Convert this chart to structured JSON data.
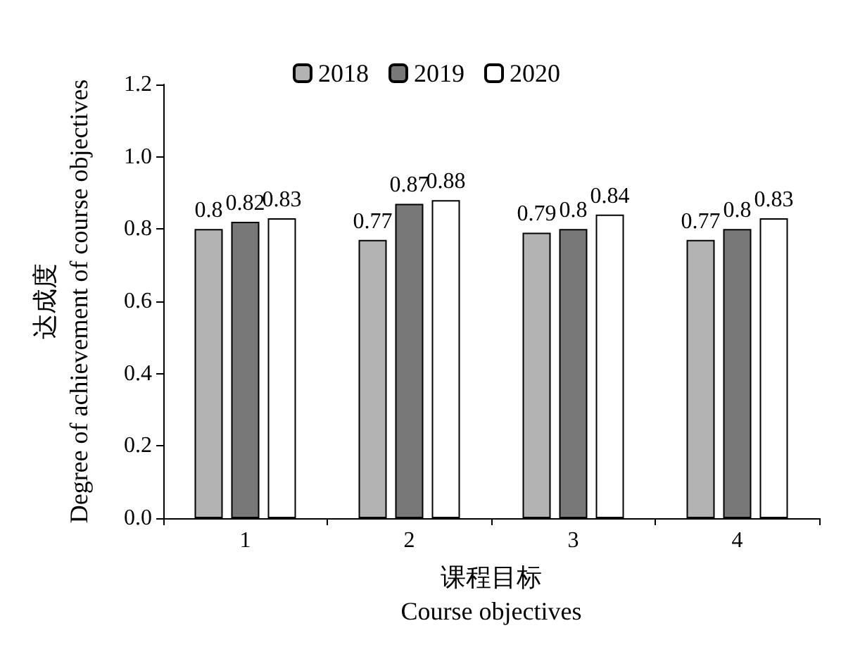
{
  "chart_data": {
    "type": "bar",
    "xlabel": "课程目标\nCourse objectives",
    "ylabel": "达成度\nDegree of achievement of course objectives",
    "categories": [
      "1",
      "2",
      "3",
      "4"
    ],
    "series": [
      {
        "name": "2018",
        "color": "#b3b3b3",
        "values": [
          0.8,
          0.77,
          0.79,
          0.77
        ]
      },
      {
        "name": "2019",
        "color": "#787878",
        "values": [
          0.82,
          0.87,
          0.8,
          0.8
        ]
      },
      {
        "name": "2020",
        "color": "#ffffff",
        "values": [
          0.83,
          0.88,
          0.84,
          0.83
        ]
      }
    ],
    "ylim": [
      0,
      1.2
    ],
    "yticks": [
      {
        "value": 0,
        "label": "0.0"
      },
      {
        "value": 0.2,
        "label": "0.2"
      },
      {
        "value": 0.4,
        "label": "0.4"
      },
      {
        "value": 0.6,
        "label": "0.6"
      },
      {
        "value": 0.8,
        "label": "0.8"
      },
      {
        "value": 1,
        "label": "1.0"
      },
      {
        "value": 1.2,
        "label": "1.2"
      }
    ],
    "data_labels": true,
    "legend": "top",
    "grid": false
  }
}
